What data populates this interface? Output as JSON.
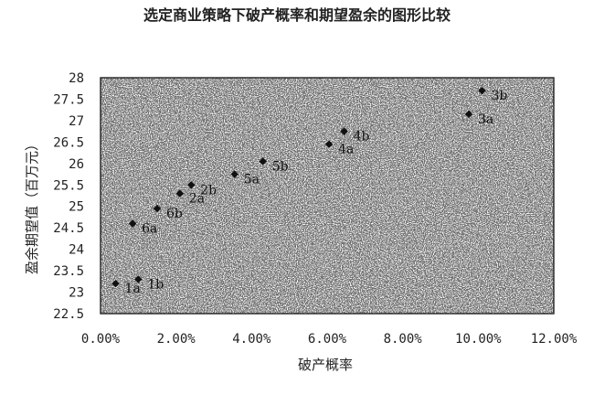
{
  "chart_data": {
    "type": "scatter",
    "title": "选定商业策略下破产概率和期望盈余的图形比较",
    "xlabel": "破产概率",
    "ylabel": "盈余期望值（百万元）",
    "xlim": [
      0,
      0.12
    ],
    "ylim": [
      22.5,
      28
    ],
    "xticks": [
      0,
      0.02,
      0.04,
      0.06,
      0.08,
      0.1,
      0.12
    ],
    "xtick_labels": [
      "0.00%",
      "2.00%",
      "4.00%",
      "6.00%",
      "8.00%",
      "10.00%",
      "12.00%"
    ],
    "yticks": [
      22.5,
      23,
      23.5,
      24,
      24.5,
      25,
      25.5,
      26,
      26.5,
      27,
      27.5,
      28
    ],
    "ytick_labels": [
      "22.5",
      "23",
      "23.5",
      "24",
      "24.5",
      "25",
      "25.5",
      "26",
      "26.5",
      "27",
      "27.5",
      "28"
    ],
    "grid": false,
    "points": [
      {
        "label": "1a",
        "x": 0.004,
        "y": 23.2
      },
      {
        "label": "1b",
        "x": 0.01,
        "y": 23.3
      },
      {
        "label": "6a",
        "x": 0.0085,
        "y": 24.6
      },
      {
        "label": "6b",
        "x": 0.015,
        "y": 24.95
      },
      {
        "label": "2a",
        "x": 0.021,
        "y": 25.3
      },
      {
        "label": "2b",
        "x": 0.024,
        "y": 25.5
      },
      {
        "label": "5a",
        "x": 0.0355,
        "y": 25.75
      },
      {
        "label": "5b",
        "x": 0.043,
        "y": 26.05
      },
      {
        "label": "4a",
        "x": 0.0605,
        "y": 26.45
      },
      {
        "label": "4b",
        "x": 0.0645,
        "y": 26.75
      },
      {
        "label": "3a",
        "x": 0.0975,
        "y": 27.15
      },
      {
        "label": "3b",
        "x": 0.101,
        "y": 27.7
      }
    ]
  }
}
